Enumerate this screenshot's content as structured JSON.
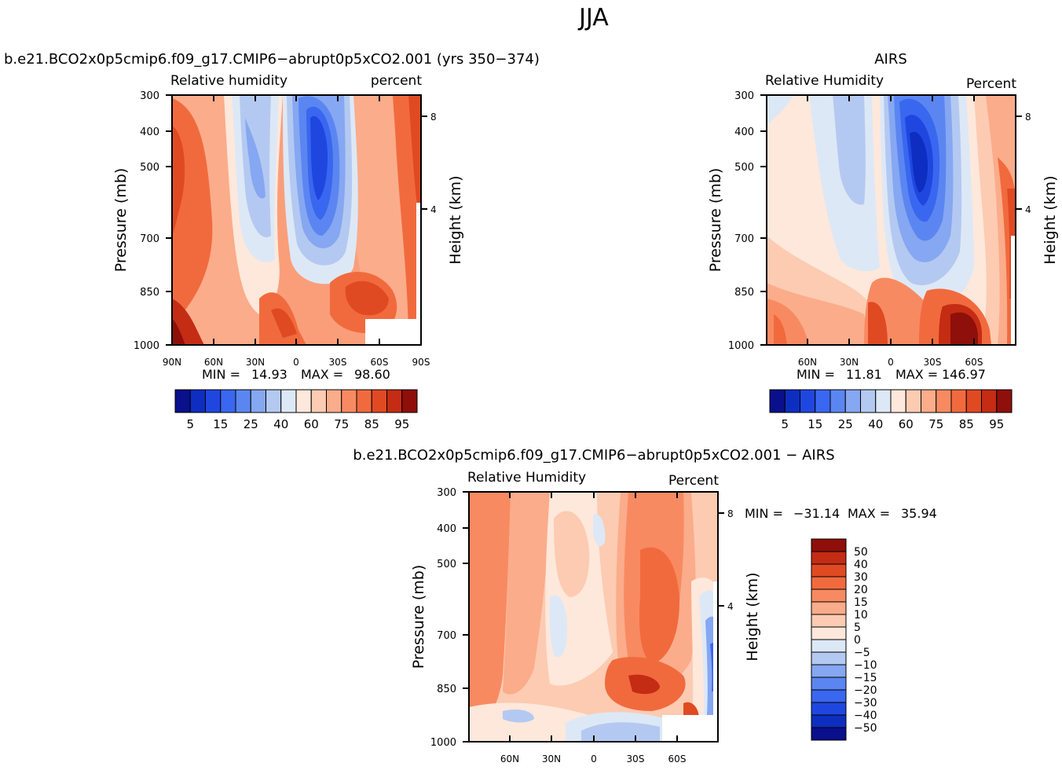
{
  "main_title": "JJA",
  "colors": {
    "abs_scale": [
      "#0a0f8c",
      "#0d2ec0",
      "#1f47e0",
      "#3a67ef",
      "#5b86f1",
      "#86a7f1",
      "#b4c9f1",
      "#dde8f6",
      "#fde8db",
      "#fccbb2",
      "#fbac8a",
      "#f88a62",
      "#f16a3e",
      "#e04a22",
      "#c42c14",
      "#8f0f0a"
    ],
    "diff_scale": [
      "#0a0f8c",
      "#0d2ec0",
      "#1f47e0",
      "#3a67ef",
      "#5b86f1",
      "#86a7f1",
      "#b4c9f1",
      "#dde8f6",
      "#fde8db",
      "#fccbb2",
      "#fbac8a",
      "#f88a62",
      "#f16a3e",
      "#e04a22",
      "#c42c14",
      "#8f0f0a"
    ]
  },
  "chart_data": [
    {
      "type": "heatmap",
      "title": "b.e21.BCO2x0p5cmip6.f09_g17.CMIP6−abrupt0p5xCO2.001 (yrs 350−374)",
      "subtitle_left": "Relative humidity",
      "subtitle_right": "percent",
      "ylabel": "Pressure (mb)",
      "ylabel_right": "Height (km)",
      "y_ticks": [
        "300",
        "400",
        "500",
        "700",
        "850",
        "1000"
      ],
      "y_right_ticks": [
        "8",
        "4"
      ],
      "x_ticks": [
        "90N",
        "60N",
        "30N",
        "0",
        "30S",
        "60S",
        "90S"
      ],
      "stats": {
        "min_label": "MIN =",
        "min": "14.93",
        "max_label": "MAX =",
        "max": "98.60"
      },
      "colorbar_labels": [
        "5",
        "15",
        "25",
        "40",
        "60",
        "75",
        "85",
        "95"
      ]
    },
    {
      "type": "heatmap",
      "title": "AIRS",
      "subtitle_left": "Relative Humidity",
      "subtitle_right": "Percent",
      "ylabel": "Pressure (mb)",
      "ylabel_right": "Height (km)",
      "y_ticks": [
        "300",
        "400",
        "500",
        "700",
        "850",
        "1000"
      ],
      "y_right_ticks": [
        "8",
        "4"
      ],
      "x_ticks": [
        "60N",
        "30N",
        "0",
        "30S",
        "60S"
      ],
      "stats": {
        "min_label": "MIN =",
        "min": "11.81",
        "max_label": "MAX =",
        "max": "146.97"
      },
      "colorbar_labels": [
        "5",
        "15",
        "25",
        "40",
        "60",
        "75",
        "85",
        "95"
      ]
    },
    {
      "type": "heatmap",
      "title": "b.e21.BCO2x0p5cmip6.f09_g17.CMIP6−abrupt0p5xCO2.001 − AIRS",
      "subtitle_left": "Relative Humidity",
      "subtitle_right": "Percent",
      "ylabel": "Pressure (mb)",
      "ylabel_right": "Height (km)",
      "y_ticks": [
        "300",
        "400",
        "500",
        "700",
        "850",
        "1000"
      ],
      "y_right_ticks": [
        "8",
        "4"
      ],
      "x_ticks": [
        "60N",
        "30N",
        "0",
        "30S",
        "60S"
      ],
      "stats": {
        "min_label": "MIN =",
        "min": "−31.14",
        "max_label": "MAX =",
        "max": "35.94"
      },
      "colorbar_labels": [
        "50",
        "40",
        "30",
        "20",
        "15",
        "10",
        "5",
        "0",
        "−5",
        "−10",
        "−15",
        "−20",
        "−30",
        "−40",
        "−50"
      ]
    }
  ]
}
